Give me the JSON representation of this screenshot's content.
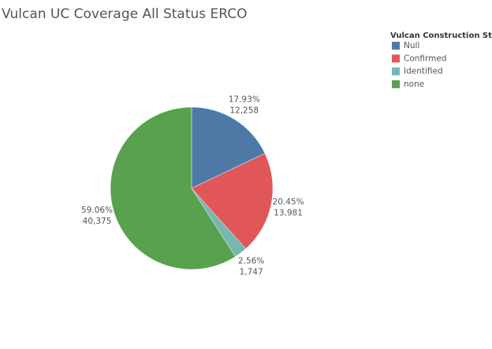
{
  "chart_data": {
    "type": "pie",
    "title": "Vulcan UC Coverage All Status ERCO",
    "legend_title": "Vulcan Construction Status",
    "categories": [
      "Null",
      "Confirmed",
      "Identified",
      "none"
    ],
    "values": [
      17.93,
      20.45,
      2.56,
      59.06
    ],
    "value_labels": [
      "17.93%",
      "20.45%",
      "2.56%",
      "59.06%"
    ],
    "counts": [
      12258,
      13981,
      1747,
      40375
    ],
    "count_labels": [
      "12,258",
      "13,981",
      "1,747",
      "40,375"
    ],
    "colors": [
      "#4e79a7",
      "#e15759",
      "#76b7b2",
      "#59a14f"
    ],
    "legend": "top-right"
  }
}
